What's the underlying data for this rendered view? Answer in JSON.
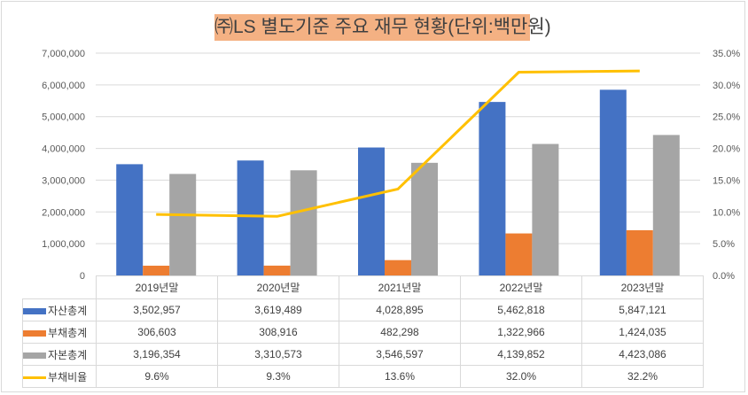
{
  "chart_data": {
    "type": "bar",
    "title": "㈜LS 별도기준 주요 재무 현황(단위:백만원)",
    "categories": [
      "2019년말",
      "2020년말",
      "2021년말",
      "2022년말",
      "2023년말"
    ],
    "series": [
      {
        "name": "자산총계",
        "type": "bar",
        "color": "#4472c4",
        "values": [
          3502957,
          3619489,
          4028895,
          5462818,
          5847121
        ],
        "labels": [
          "3,502,957",
          "3,619,489",
          "4,028,895",
          "5,462,818",
          "5,847,121"
        ]
      },
      {
        "name": "부채총계",
        "type": "bar",
        "color": "#ed7d31",
        "values": [
          306603,
          308916,
          482298,
          1322966,
          1424035
        ],
        "labels": [
          "306,603",
          "308,916",
          "482,298",
          "1,322,966",
          "1,424,035"
        ]
      },
      {
        "name": "자본총계",
        "type": "bar",
        "color": "#a5a5a5",
        "values": [
          3196354,
          3310573,
          3546597,
          4139852,
          4423086
        ],
        "labels": [
          "3,196,354",
          "3,310,573",
          "3,546,597",
          "4,139,852",
          "4,423,086"
        ]
      },
      {
        "name": "부채비율",
        "type": "line",
        "axis": "right",
        "color": "#ffc000",
        "values": [
          9.6,
          9.3,
          13.6,
          32.0,
          32.2
        ],
        "labels": [
          "9.6%",
          "9.3%",
          "13.6%",
          "32.0%",
          "32.2%"
        ]
      }
    ],
    "y_left": {
      "range": [
        0,
        7000000
      ],
      "ticks": [
        "0",
        "1,000,000",
        "2,000,000",
        "3,000,000",
        "4,000,000",
        "5,000,000",
        "6,000,000",
        "7,000,000"
      ]
    },
    "y_right": {
      "range": [
        0,
        35
      ],
      "ticks": [
        "0.0%",
        "5.0%",
        "10.0%",
        "15.0%",
        "20.0%",
        "25.0%",
        "30.0%",
        "35.0%"
      ]
    },
    "grid": true,
    "legend": "data-table"
  }
}
